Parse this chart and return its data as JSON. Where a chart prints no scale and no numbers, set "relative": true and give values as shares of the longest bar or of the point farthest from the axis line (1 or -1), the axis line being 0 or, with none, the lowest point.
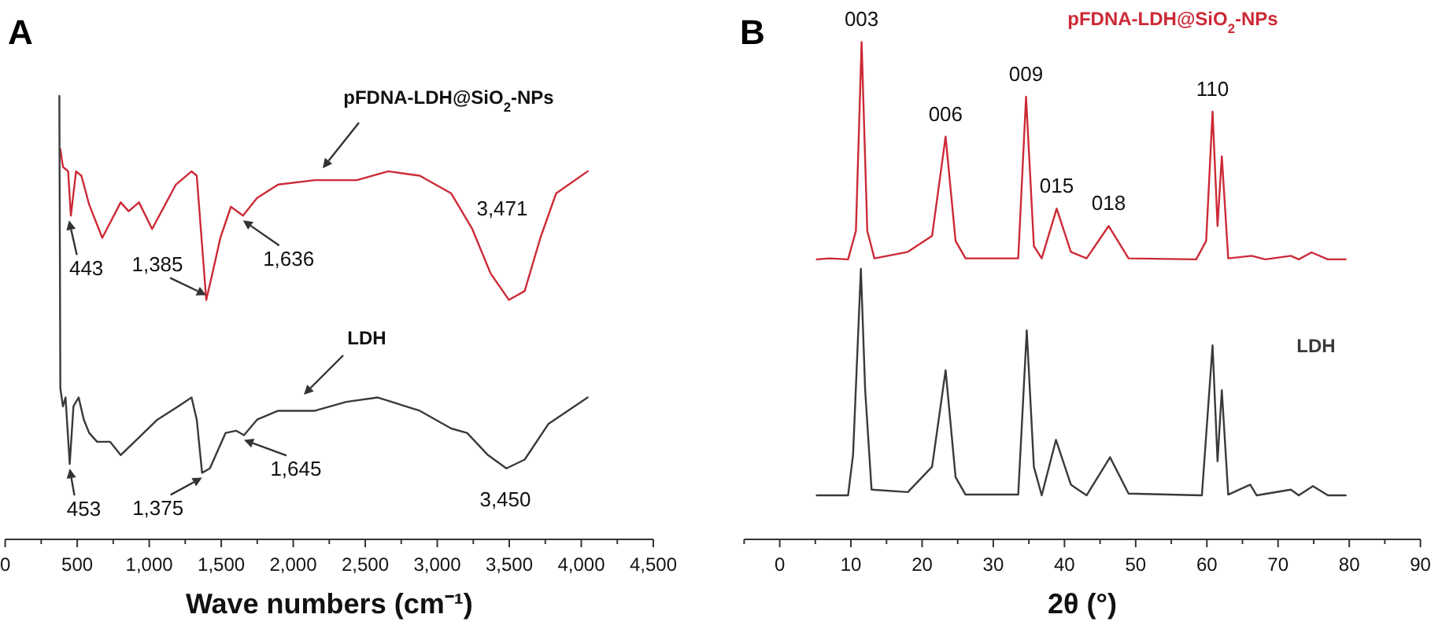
{
  "chart_data": [
    {
      "type": "line",
      "title": "A",
      "xlabel": "Wave numbers (cm⁻¹)",
      "relative": true,
      "xlim": [
        0,
        4500
      ],
      "xticks": [
        0,
        {
          "value": 250,
          "label": null
        },
        500,
        {
          "value": 750,
          "label": null
        },
        {
          "value": 1000,
          "label": "1,000"
        },
        {
          "value": 1250,
          "label": null
        },
        {
          "value": 1500,
          "label": "1,500"
        },
        {
          "value": 1750,
          "label": null
        },
        {
          "value": 2000,
          "label": "2,000"
        },
        {
          "value": 2250,
          "label": null
        },
        {
          "value": 2500,
          "label": "2,500"
        },
        {
          "value": 2750,
          "label": null
        },
        {
          "value": 3000,
          "label": "3,000"
        },
        {
          "value": 3250,
          "label": null
        },
        {
          "value": 3500,
          "label": "3,500"
        },
        {
          "value": 3750,
          "label": null
        },
        {
          "value": 4000,
          "label": "4,000"
        },
        {
          "value": 4250,
          "label": null
        },
        {
          "value": 4500,
          "label": "4,500"
        }
      ],
      "series": [
        {
          "name": "pFDNA-LDH@SiO$_{2}$-NPs",
          "color": "#cc2a36",
          "x": [
            383,
            401,
            437,
            456,
            492,
            529,
            583,
            674,
            802,
            857,
            929,
            1020,
            1185,
            1294,
            1330,
            1396,
            1439,
            1494,
            1567,
            1651,
            1749,
            1895,
            2150,
            2441,
            2660,
            2879,
            3097,
            3243,
            3370,
            3497,
            3607,
            3716,
            3825,
            4044
          ],
          "values": [
            0.88,
            0.84,
            0.83,
            0.73,
            0.83,
            0.82,
            0.755,
            0.68,
            0.76,
            0.74,
            0.76,
            0.7,
            0.8,
            0.83,
            0.82,
            0.54,
            0.6,
            0.68,
            0.75,
            0.73,
            0.77,
            0.8,
            0.81,
            0.81,
            0.83,
            0.82,
            0.78,
            0.7,
            0.6,
            0.54,
            0.56,
            0.68,
            0.78,
            0.83
          ]
        },
        {
          "name": "LDH",
          "color": "#3a3a3a",
          "x": [
            376,
            383,
            401,
            419,
            448,
            474,
            510,
            546,
            583,
            638,
            729,
            802,
            929,
            1057,
            1202,
            1294,
            1330,
            1367,
            1421,
            1530,
            1603,
            1658,
            1749,
            1895,
            2150,
            2368,
            2587,
            2879,
            3097,
            3207,
            3352,
            3480,
            3607,
            3771,
            4044
          ],
          "values": [
            1.0,
            0.34,
            0.3,
            0.32,
            0.17,
            0.3,
            0.32,
            0.27,
            0.24,
            0.22,
            0.22,
            0.19,
            0.23,
            0.27,
            0.3,
            0.32,
            0.27,
            0.15,
            0.16,
            0.24,
            0.245,
            0.235,
            0.27,
            0.29,
            0.29,
            0.31,
            0.32,
            0.29,
            0.25,
            0.24,
            0.19,
            0.16,
            0.18,
            0.26,
            0.32
          ]
        }
      ],
      "annotations": [
        {
          "text": "443",
          "x": 443,
          "y": 0.73
        },
        {
          "text": "1,385",
          "x": 1396,
          "y": 0.54
        },
        {
          "text": "1,636",
          "x": 1651,
          "y": 0.73
        },
        "3,471",
        {
          "text": "453",
          "x": 448,
          "y": 0.17
        },
        {
          "text": "1,375",
          "x": 1367,
          "y": 0.15
        },
        {
          "text": "1,645",
          "x": 1658,
          "y": 0.235
        },
        "3,450"
      ]
    },
    {
      "type": "line",
      "title": "B",
      "xlabel": "2θ (°)",
      "relative": true,
      "xlim": [
        -5,
        90
      ],
      "xticks": [
        {
          "value": -5,
          "label": null
        },
        0,
        {
          "value": 5,
          "label": null
        },
        10,
        {
          "value": 15,
          "label": null
        },
        20,
        {
          "value": 25,
          "label": null
        },
        30,
        {
          "value": 35,
          "label": null
        },
        40,
        {
          "value": 45,
          "label": null
        },
        50,
        {
          "value": 55,
          "label": null
        },
        60,
        {
          "value": 65,
          "label": null
        },
        70,
        {
          "value": 75,
          "label": null
        },
        80,
        {
          "value": 85,
          "label": null
        },
        90
      ],
      "series": [
        {
          "name": "pFDNA-LDH@SiO$_{2}$-NPs",
          "color": "#cc2a36",
          "x": [
            5.2,
            7.0,
            9.6,
            10.7,
            11.5,
            12.3,
            13.3,
            18.0,
            21.4,
            23.3,
            24.7,
            26.1,
            33.5,
            34.6,
            35.7,
            36.8,
            38.9,
            40.9,
            43.1,
            46.2,
            49.0,
            58.5,
            59.9,
            60.8,
            61.5,
            62.1,
            63.0,
            66.3,
            68.2,
            71.8,
            72.9,
            74.7,
            77.0,
            79.5
          ],
          "values": [
            0.563,
            0.565,
            0.563,
            0.62,
            1.0,
            0.62,
            0.565,
            0.578,
            0.61,
            0.81,
            0.6,
            0.565,
            0.565,
            0.89,
            0.59,
            0.565,
            0.665,
            0.578,
            0.565,
            0.63,
            0.565,
            0.563,
            0.6,
            0.86,
            0.63,
            0.77,
            0.565,
            0.57,
            0.563,
            0.57,
            0.563,
            0.577,
            0.563,
            0.563
          ]
        },
        {
          "name": "LDH",
          "color": "#3a3a3a",
          "x": [
            5.2,
            9.6,
            10.3,
            11.4,
            12.0,
            12.9,
            18.0,
            21.4,
            23.3,
            24.7,
            26.1,
            33.5,
            34.7,
            35.7,
            36.8,
            38.8,
            40.9,
            43.1,
            46.4,
            49.0,
            59.3,
            60.8,
            61.5,
            62.1,
            63.0,
            66.1,
            67.0,
            71.8,
            72.9,
            74.9,
            77.0,
            79.5
          ],
          "values": [
            0.0885,
            0.0885,
            0.17,
            0.544,
            0.3,
            0.1,
            0.095,
            0.146,
            0.34,
            0.125,
            0.09,
            0.09,
            0.42,
            0.146,
            0.0885,
            0.2,
            0.11,
            0.0885,
            0.165,
            0.092,
            0.0885,
            0.39,
            0.157,
            0.3,
            0.09,
            0.11,
            0.0885,
            0.1,
            0.0885,
            0.107,
            0.0885,
            0.0885
          ]
        }
      ],
      "annotations": [
        {
          "text": "003",
          "x": 11.5,
          "y": 1.0
        },
        {
          "text": "006",
          "x": 23.3,
          "y": 0.81
        },
        {
          "text": "009",
          "x": 34.6,
          "y": 0.89
        },
        {
          "text": "015",
          "x": 38.9,
          "y": 0.665
        },
        {
          "text": "018",
          "x": 46.2,
          "y": 0.63
        },
        {
          "text": "110",
          "x": 60.8,
          "y": 0.86
        }
      ]
    }
  ]
}
